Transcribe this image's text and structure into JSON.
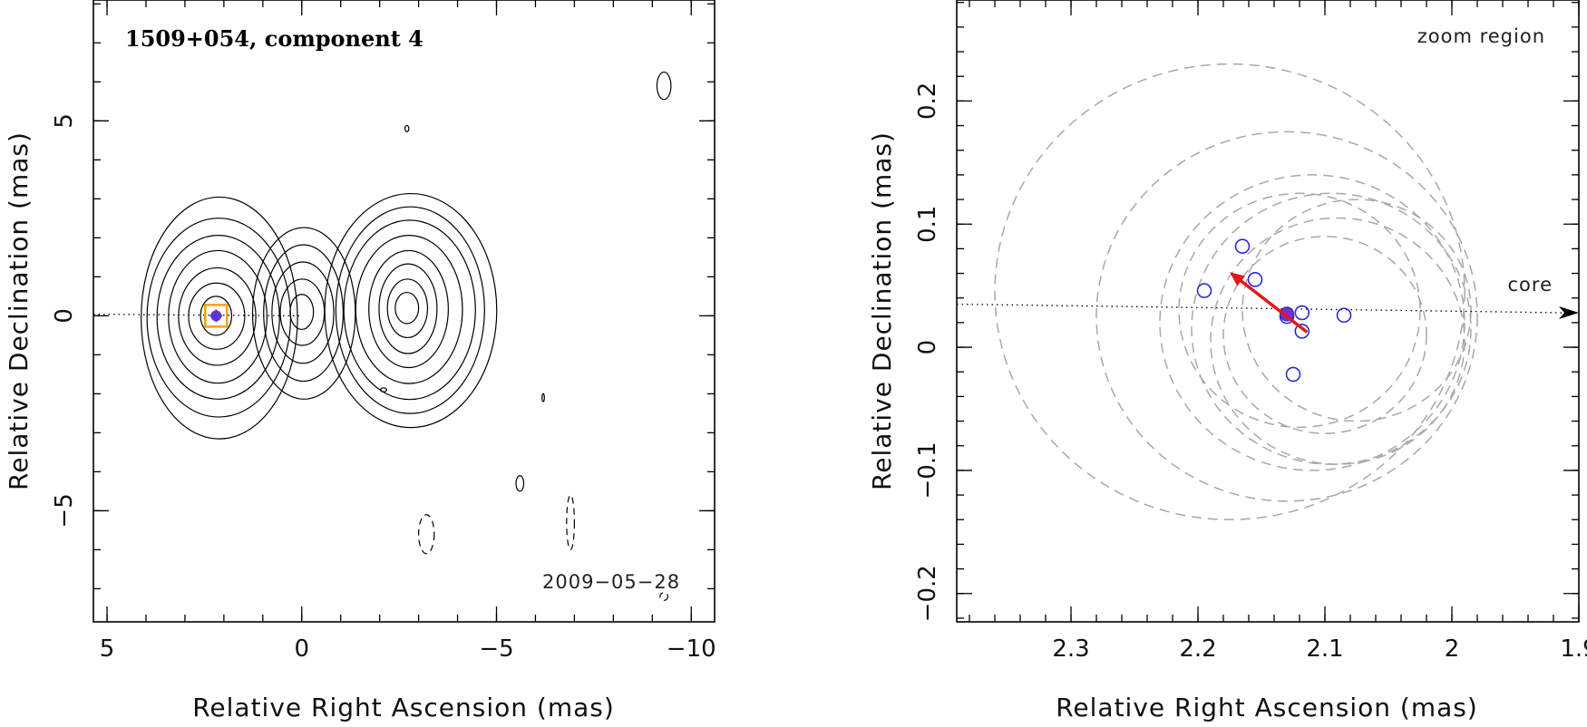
{
  "chart_data": [
    {
      "type": "contour",
      "title": "1509+054, component 4",
      "epoch_label": "2009−05−28",
      "xlabel": "Relative Right Ascension (mas)",
      "ylabel": "Relative Declination (mas)",
      "xlim": [
        5.35,
        -10.6
      ],
      "ylim": [
        -7.85,
        8.1
      ],
      "x_ticks": [
        5,
        0,
        -5,
        -10
      ],
      "x_tick_labels": [
        "5",
        "0",
        "−5",
        "−10"
      ],
      "y_ticks": [
        -5,
        0,
        5
      ],
      "y_tick_labels": [
        "−5",
        "0",
        "5"
      ],
      "x_minor_step": 1,
      "y_minor_step": 1,
      "core_line": true,
      "sources": [
        {
          "name": "component-4",
          "x": 2.2,
          "y": 0.0,
          "levels": [
            [
              0.4,
              0.5
            ],
            [
              0.7,
              0.85
            ],
            [
              1.0,
              1.25
            ],
            [
              1.3,
              1.7
            ],
            [
              1.55,
              2.1
            ],
            [
              1.8,
              2.55
            ],
            [
              2.05,
              3.1
            ]
          ]
        },
        {
          "name": "center-knot",
          "x": 0.0,
          "y": 0.1,
          "levels": [
            [
              0.3,
              0.45
            ],
            [
              0.55,
              0.85
            ],
            [
              0.8,
              1.3
            ],
            [
              1.05,
              1.75
            ],
            [
              1.3,
              2.2
            ]
          ]
        },
        {
          "name": "outer-knot",
          "x": -2.7,
          "y": 0.2,
          "levels": [
            [
              0.3,
              0.4
            ],
            [
              0.5,
              0.75
            ],
            [
              0.75,
              1.15
            ],
            [
              1.05,
              1.5
            ],
            [
              1.35,
              1.9
            ],
            [
              1.65,
              2.3
            ],
            [
              1.95,
              2.65
            ],
            [
              2.25,
              3.0
            ]
          ]
        }
      ],
      "marker": {
        "x": 2.2,
        "y": 0.0,
        "box_color": "#f0a020",
        "dot_color": "#7a2fc8"
      }
    },
    {
      "type": "scatter",
      "title": "zoom region",
      "xlabel": "Relative Right Ascension (mas)",
      "ylabel": "Relative Declination (mas)",
      "xlim": [
        2.39,
        1.9
      ],
      "ylim": [
        -0.223,
        0.282
      ],
      "x_ticks": [
        2.3,
        2.2,
        2.1,
        2.0,
        1.9
      ],
      "x_tick_labels": [
        "2.3",
        "2.2",
        "2.1",
        "2",
        "1.9"
      ],
      "y_ticks": [
        -0.2,
        -0.1,
        0.0,
        0.1,
        0.2
      ],
      "y_tick_labels": [
        "−0.2",
        "−0.1",
        "0",
        "0.1",
        "0.2"
      ],
      "x_minor_step": 0.02,
      "y_minor_step": 0.02,
      "core_label": "core",
      "core_line": {
        "x0": 2.39,
        "y0": 0.035,
        "x1": 1.9,
        "y1": 0.028
      },
      "points": [
        {
          "x": 2.165,
          "y": 0.082
        },
        {
          "x": 2.155,
          "y": 0.055
        },
        {
          "x": 2.195,
          "y": 0.046
        },
        {
          "x": 2.118,
          "y": 0.028
        },
        {
          "x": 2.085,
          "y": 0.026
        },
        {
          "x": 2.13,
          "y": 0.025
        },
        {
          "x": 2.118,
          "y": 0.013
        },
        {
          "x": 2.125,
          "y": -0.022
        }
      ],
      "mean_position": {
        "x": 2.13,
        "y": 0.027,
        "color": "#7a2fc8"
      },
      "velocity_vector": {
        "x0": 2.115,
        "y0": 0.013,
        "x1": 2.175,
        "y1": 0.061,
        "color": "#e01818"
      },
      "error_circles": [
        {
          "x": 2.175,
          "y": 0.045,
          "r": 0.185
        },
        {
          "x": 2.13,
          "y": 0.025,
          "r": 0.15
        },
        {
          "x": 2.11,
          "y": 0.02,
          "r": 0.12
        },
        {
          "x": 2.095,
          "y": 0.015,
          "r": 0.11
        },
        {
          "x": 2.12,
          "y": 0.03,
          "r": 0.095
        },
        {
          "x": 2.09,
          "y": 0.005,
          "r": 0.1
        },
        {
          "x": 2.075,
          "y": 0.03,
          "r": 0.09
        },
        {
          "x": 2.1,
          "y": 0.01,
          "r": 0.08
        }
      ]
    }
  ]
}
